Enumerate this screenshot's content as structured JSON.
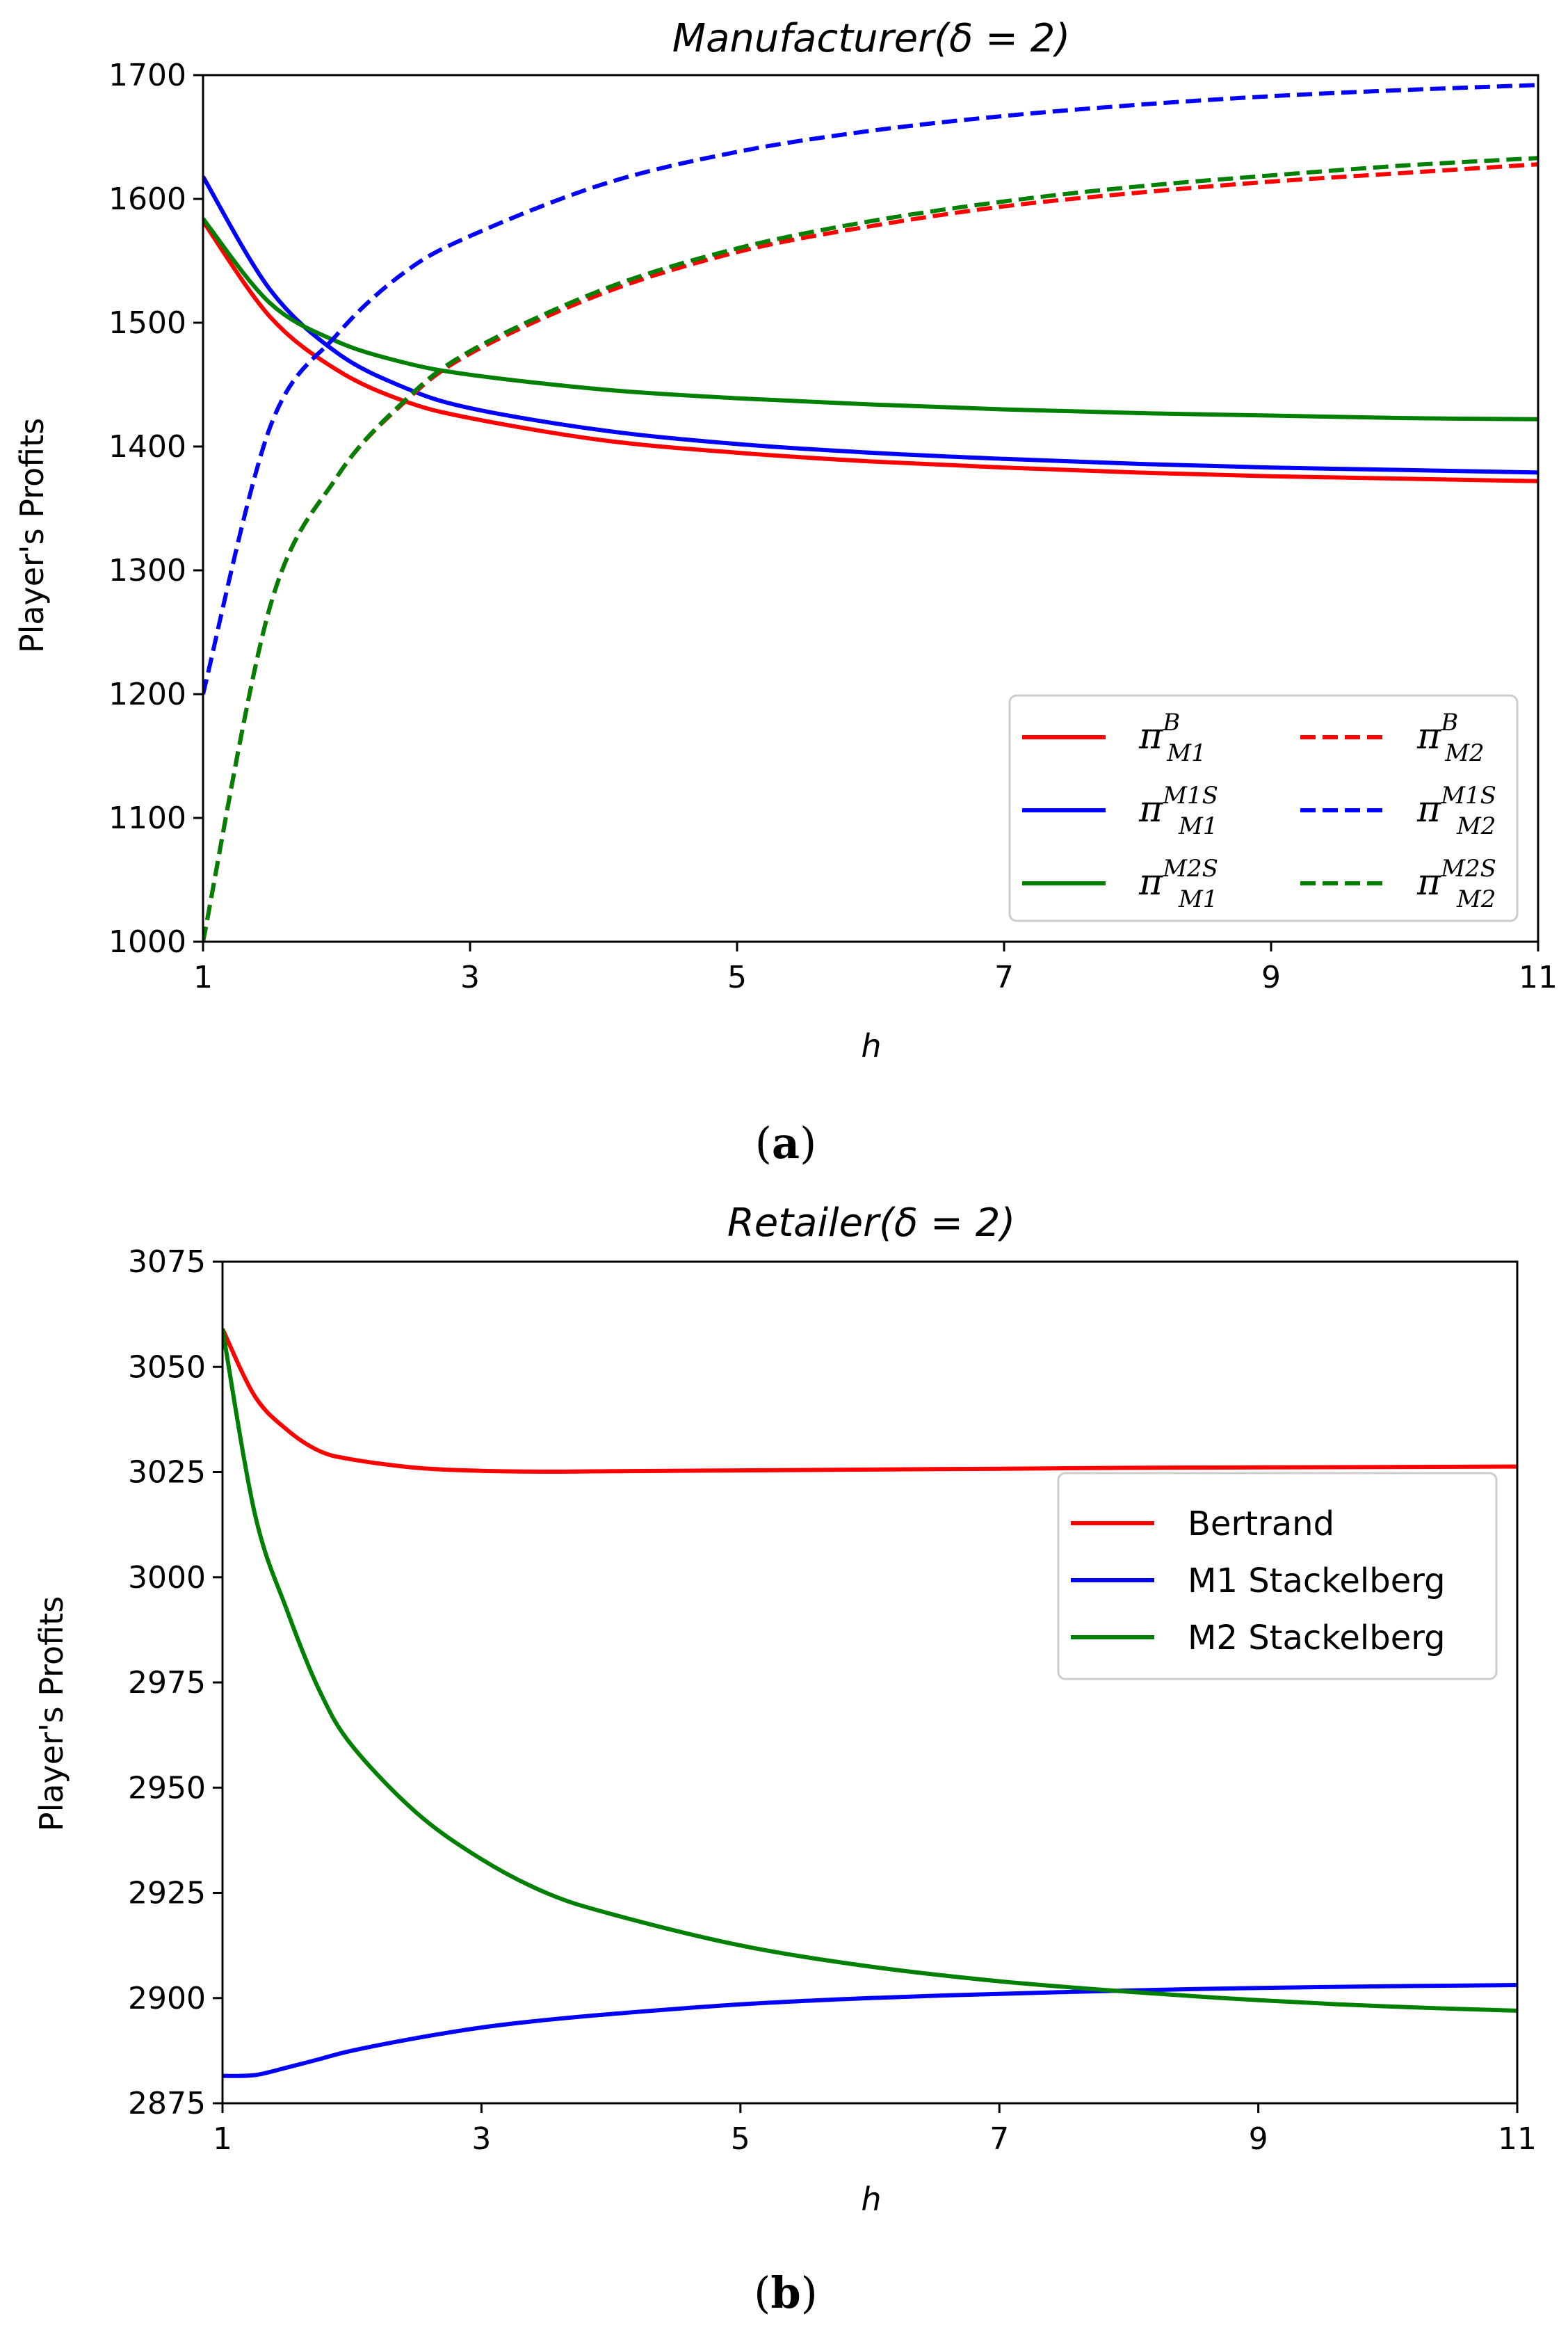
{
  "chart_data": [
    {
      "id": "a",
      "type": "line",
      "title_main": "Manufacturer",
      "title_param": "(δ = 2)",
      "panel_label": "a",
      "xlabel": "h",
      "ylabel": "Player's Profits",
      "xlim": [
        1,
        11
      ],
      "ylim": [
        1000,
        1700
      ],
      "xticks": [
        1,
        3,
        5,
        7,
        9,
        11
      ],
      "yticks": [
        1000,
        1100,
        1200,
        1300,
        1400,
        1500,
        1600,
        1700
      ],
      "legend_position": "lower-right",
      "legend_columns": 2,
      "x": [
        1,
        1.5,
        2,
        2.5,
        3,
        4,
        5,
        6,
        7,
        8,
        9,
        10,
        11
      ],
      "series": [
        {
          "name_base": "π",
          "name_sup": "B",
          "name_sub": "M1",
          "color": "#ff0000",
          "dash": "solid",
          "values": [
            1582,
            1505,
            1462,
            1437,
            1423,
            1405,
            1395,
            1388,
            1383,
            1379,
            1376,
            1374,
            1372
          ]
        },
        {
          "name_base": "π",
          "name_sup": "M1S",
          "name_sub": "M1",
          "color": "#0000ff",
          "dash": "solid",
          "values": [
            1618,
            1527,
            1476,
            1448,
            1431,
            1413,
            1402,
            1395,
            1390,
            1386,
            1383,
            1381,
            1379
          ]
        },
        {
          "name_base": "π",
          "name_sup": "M2S",
          "name_sub": "M1",
          "color": "#008000",
          "dash": "solid",
          "values": [
            1584,
            1516,
            1485,
            1468,
            1458,
            1446,
            1439,
            1434,
            1430,
            1427,
            1425,
            1423,
            1422
          ]
        },
        {
          "name_base": "π",
          "name_sup": "B",
          "name_sub": "M2",
          "color": "#ff0000",
          "dash": "dashed",
          "values": [
            1000,
            1270,
            1375,
            1435,
            1475,
            1524,
            1557,
            1578,
            1594,
            1605,
            1614,
            1621,
            1628
          ]
        },
        {
          "name_base": "π",
          "name_sup": "M1S",
          "name_sub": "M2",
          "color": "#0000ff",
          "dash": "dashed",
          "values": [
            1200,
            1415,
            1490,
            1540,
            1570,
            1612,
            1638,
            1655,
            1667,
            1676,
            1683,
            1688,
            1692
          ]
        },
        {
          "name_base": "π",
          "name_sup": "M2S",
          "name_sub": "M2",
          "color": "#008000",
          "dash": "dashed",
          "values": [
            1000,
            1270,
            1375,
            1436,
            1477,
            1527,
            1560,
            1582,
            1598,
            1610,
            1619,
            1627,
            1633
          ]
        }
      ]
    },
    {
      "id": "b",
      "type": "line",
      "title_main": "Retailer",
      "title_param": "(δ = 2)",
      "panel_label": "b",
      "xlabel": "h",
      "ylabel": "Player's Profits",
      "xlim": [
        1,
        11
      ],
      "ylim": [
        2875,
        3075
      ],
      "xticks": [
        1,
        3,
        5,
        7,
        9,
        11
      ],
      "yticks": [
        2875,
        2900,
        2925,
        2950,
        2975,
        3000,
        3025,
        3050,
        3075
      ],
      "legend_position": "center-right",
      "legend_columns": 1,
      "x": [
        1,
        1.25,
        1.5,
        1.75,
        2,
        2.5,
        3,
        3.5,
        4,
        5,
        6,
        7,
        8,
        9,
        10,
        11
      ],
      "series": [
        {
          "name": "Bertrand",
          "color": "#ff0000",
          "dash": "solid",
          "values": [
            3059,
            3043,
            3035,
            3030,
            3028,
            3026,
            3025.3,
            3025.1,
            3025.2,
            3025.4,
            3025.6,
            3025.8,
            3026.0,
            3026.1,
            3026.2,
            3026.3
          ]
        },
        {
          "name": "M1 Stackelberg",
          "color": "#0000ff",
          "dash": "solid",
          "values": [
            2881.5,
            2881.7,
            2883.5,
            2885.5,
            2887.5,
            2890.5,
            2893.0,
            2894.8,
            2896.2,
            2898.5,
            2900.0,
            2901.0,
            2901.8,
            2902.4,
            2902.8,
            2903.1
          ]
        },
        {
          "name": "M2 Stackelberg",
          "color": "#008000",
          "dash": "solid",
          "values": [
            3059,
            3015,
            2992,
            2973,
            2960,
            2944,
            2933,
            2925,
            2920,
            2912.5,
            2907.5,
            2904.0,
            2901.5,
            2899.5,
            2898.0,
            2897.0
          ]
        }
      ]
    }
  ]
}
